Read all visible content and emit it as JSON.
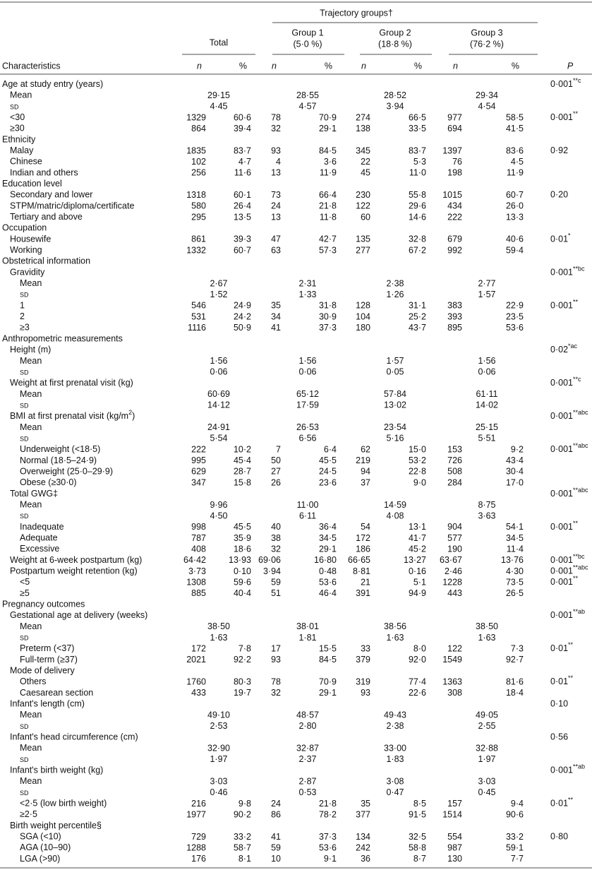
{
  "header": {
    "trajectory": "Trajectory groups†",
    "total": "Total",
    "groups": [
      {
        "name": "Group 1",
        "share": "(5·0 %)"
      },
      {
        "name": "Group 2",
        "share": "(18·8 %)"
      },
      {
        "name": "Group 3",
        "share": "(76·2 %)"
      }
    ],
    "characteristics": "Characteristics",
    "n": "n",
    "pct": "%",
    "p": "P"
  },
  "rows": [
    {
      "label": "Age at study entry (years)",
      "indent": 0,
      "p": "0·001",
      "p_sup": "**c"
    },
    {
      "label": "Mean",
      "indent": 1,
      "cells": [
        "29·15",
        "28·55",
        "28·52",
        "29·34"
      ]
    },
    {
      "label": "sd",
      "indent": 1,
      "cells": [
        "4·45",
        "4·57",
        "3·94",
        "4·54"
      ]
    },
    {
      "label": "<30",
      "indent": 1,
      "cells": [
        "1329",
        "60·6",
        "78",
        "70·9",
        "274",
        "66·5",
        "977",
        "58·5"
      ],
      "p": "0·001",
      "p_sup": "**"
    },
    {
      "label": "≥30",
      "indent": 1,
      "cells": [
        "864",
        "39·4",
        "32",
        "29·1",
        "138",
        "33·5",
        "694",
        "41·5"
      ]
    },
    {
      "label": "Ethnicity",
      "indent": 0
    },
    {
      "label": "Malay",
      "indent": 1,
      "cells": [
        "1835",
        "83·7",
        "93",
        "84·5",
        "345",
        "83·7",
        "1397",
        "83·6"
      ],
      "p": "0·92"
    },
    {
      "label": "Chinese",
      "indent": 1,
      "cells": [
        "102",
        "4·7",
        "4",
        "3·6",
        "22",
        "5·3",
        "76",
        "4·5"
      ]
    },
    {
      "label": "Indian and others",
      "indent": 1,
      "cells": [
        "256",
        "11·6",
        "13",
        "11·9",
        "45",
        "11·0",
        "198",
        "11·9"
      ]
    },
    {
      "label": "Education level",
      "indent": 0
    },
    {
      "label": "Secondary and lower",
      "indent": 1,
      "cells": [
        "1318",
        "60·1",
        "73",
        "66·4",
        "230",
        "55·8",
        "1015",
        "60·7"
      ],
      "p": "0·20"
    },
    {
      "label": "STPM/matric/diploma/certificate",
      "indent": 1,
      "cells": [
        "580",
        "26·4",
        "24",
        "21·8",
        "122",
        "29·6",
        "434",
        "26·0"
      ]
    },
    {
      "label": "Tertiary and above",
      "indent": 1,
      "cells": [
        "295",
        "13·5",
        "13",
        "11·8",
        "60",
        "14·6",
        "222",
        "13·3"
      ]
    },
    {
      "label": "Occupation",
      "indent": 0
    },
    {
      "label": "Housewife",
      "indent": 1,
      "cells": [
        "861",
        "39·3",
        "47",
        "42·7",
        "135",
        "32·8",
        "679",
        "40·6"
      ],
      "p": "0·01",
      "p_sup": "*"
    },
    {
      "label": "Working",
      "indent": 1,
      "cells": [
        "1332",
        "60·7",
        "63",
        "57·3",
        "277",
        "67·2",
        "992",
        "59·4"
      ]
    },
    {
      "label": "Obstetrical information",
      "indent": 0
    },
    {
      "label": "Gravidity",
      "indent": 1,
      "p": "0·001",
      "p_sup": "**bc"
    },
    {
      "label": "Mean",
      "indent": 2,
      "cells": [
        "2·67",
        "2·31",
        "2·38",
        "2·77"
      ]
    },
    {
      "label": "sd",
      "indent": 2,
      "cells": [
        "1·52",
        "1·33",
        "1·26",
        "1·57"
      ]
    },
    {
      "label": "1",
      "indent": 2,
      "cells": [
        "546",
        "24·9",
        "35",
        "31·8",
        "128",
        "31·1",
        "383",
        "22·9"
      ],
      "p": "0·001",
      "p_sup": "**"
    },
    {
      "label": "2",
      "indent": 2,
      "cells": [
        "531",
        "24·2",
        "34",
        "30·9",
        "104",
        "25·2",
        "393",
        "23·5"
      ]
    },
    {
      "label": "≥3",
      "indent": 2,
      "cells": [
        "1116",
        "50·9",
        "41",
        "37·3",
        "180",
        "43·7",
        "895",
        "53·6"
      ]
    },
    {
      "label": "Anthropometric measurements",
      "indent": 0
    },
    {
      "label": "Height (m)",
      "indent": 1,
      "p": "0·02",
      "p_sup": "*ac"
    },
    {
      "label": "Mean",
      "indent": 2,
      "cells": [
        "1·56",
        "1·56",
        "1·57",
        "1·56"
      ]
    },
    {
      "label": "sd",
      "indent": 2,
      "cells": [
        "0·06",
        "0·06",
        "0·05",
        "0·06"
      ]
    },
    {
      "label": "Weight at first prenatal visit (kg)",
      "indent": 1,
      "p": "0·001",
      "p_sup": "**c"
    },
    {
      "label": "Mean",
      "indent": 2,
      "cells": [
        "60·69",
        "65·12",
        "57·84",
        "61·11"
      ]
    },
    {
      "label": "sd",
      "indent": 2,
      "cells": [
        "14·12",
        "17·59",
        "13·02",
        "14·02"
      ]
    },
    {
      "label": "BMI at first prenatal visit (kg/m",
      "label_sup": "2",
      "label_tail": ")",
      "indent": 1,
      "p": "0·001",
      "p_sup": "**abc"
    },
    {
      "label": "Mean",
      "indent": 2,
      "cells": [
        "24·91",
        "26·53",
        "23·54",
        "25·15"
      ]
    },
    {
      "label": "sd",
      "indent": 2,
      "cells": [
        "5·54",
        "6·56",
        "5·16",
        "5·51"
      ]
    },
    {
      "label": "Underweight (<18·5)",
      "indent": 2,
      "cells": [
        "222",
        "10·2",
        "7",
        "6·4",
        "62",
        "15·0",
        "153",
        "9·2"
      ],
      "p": "0·001",
      "p_sup": "**abc"
    },
    {
      "label": "Normal (18·5–24·9)",
      "indent": 2,
      "cells": [
        "995",
        "45·4",
        "50",
        "45·5",
        "219",
        "53·2",
        "726",
        "43·4"
      ]
    },
    {
      "label": "Overweight (25·0–29·9)",
      "indent": 2,
      "cells": [
        "629",
        "28·7",
        "27",
        "24·5",
        "94",
        "22·8",
        "508",
        "30·4"
      ]
    },
    {
      "label": "Obese (≥30·0)",
      "indent": 2,
      "cells": [
        "347",
        "15·8",
        "26",
        "23·6",
        "37",
        "9·0",
        "284",
        "17·0"
      ]
    },
    {
      "label": "Total GWG‡",
      "indent": 1,
      "p": "0·001",
      "p_sup": "**abc"
    },
    {
      "label": "Mean",
      "indent": 2,
      "cells": [
        "9·96",
        "11·00",
        "14·59",
        "8·75"
      ]
    },
    {
      "label": "sd",
      "indent": 2,
      "cells": [
        "4·50",
        "6·11",
        "4·08",
        "3·63"
      ]
    },
    {
      "label": "Inadequate",
      "indent": 2,
      "cells": [
        "998",
        "45·5",
        "40",
        "36·4",
        "54",
        "13·1",
        "904",
        "54·1"
      ],
      "p": "0·001",
      "p_sup": "**"
    },
    {
      "label": "Adequate",
      "indent": 2,
      "cells": [
        "787",
        "35·9",
        "38",
        "34·5",
        "172",
        "41·7",
        "577",
        "34·5"
      ]
    },
    {
      "label": "Excessive",
      "indent": 2,
      "cells": [
        "408",
        "18·6",
        "32",
        "29·1",
        "186",
        "45·2",
        "190",
        "11·4"
      ]
    },
    {
      "label": "Weight at 6-week postpartum (kg)",
      "indent": 1,
      "cells": [
        "64·42",
        "13·93",
        "69·06",
        "16·80",
        "66·65",
        "13·27",
        "63·67",
        "13·76"
      ],
      "p": "0·001",
      "p_sup": "**bc"
    },
    {
      "label": "Postpartum weight retention (kg)",
      "indent": 1,
      "cells": [
        "3·73",
        "0·10",
        "3·94",
        "0·48",
        "8·81",
        "0·16",
        "2·46",
        "4·30"
      ],
      "p": "0·001",
      "p_sup": "**abc"
    },
    {
      "label": "<5",
      "indent": 2,
      "cells": [
        "1308",
        "59·6",
        "59",
        "53·6",
        "21",
        "5·1",
        "1228",
        "73·5"
      ],
      "p": "0·001",
      "p_sup": "**"
    },
    {
      "label": "≥5",
      "indent": 2,
      "cells": [
        "885",
        "40·4",
        "51",
        "46·4",
        "391",
        "94·9",
        "443",
        "26·5"
      ]
    },
    {
      "label": "Pregnancy outcomes",
      "indent": 0
    },
    {
      "label": "Gestational age at delivery (weeks)",
      "indent": 1,
      "p": "0·001",
      "p_sup": "**ab"
    },
    {
      "label": "Mean",
      "indent": 2,
      "cells": [
        "38·50",
        "38·01",
        "38·56",
        "38·50"
      ]
    },
    {
      "label": "sd",
      "indent": 2,
      "cells": [
        "1·63",
        "1·81",
        "1·63",
        "1·63"
      ]
    },
    {
      "label": "Preterm (<37)",
      "indent": 2,
      "cells": [
        "172",
        "7·8",
        "17",
        "15·5",
        "33",
        "8·0",
        "122",
        "7·3"
      ],
      "p": "0·01",
      "p_sup": "**"
    },
    {
      "label": "Full-term (≥37)",
      "indent": 2,
      "cells": [
        "2021",
        "92·2",
        "93",
        "84·5",
        "379",
        "92·0",
        "1549",
        "92·7"
      ]
    },
    {
      "label": "Mode of delivery",
      "indent": 1
    },
    {
      "label": "Others",
      "indent": 2,
      "cells": [
        "1760",
        "80·3",
        "78",
        "70·9",
        "319",
        "77·4",
        "1363",
        "81·6"
      ],
      "p": "0·01",
      "p_sup": "**"
    },
    {
      "label": "Caesarean section",
      "indent": 2,
      "cells": [
        "433",
        "19·7",
        "32",
        "29·1",
        "93",
        "22·6",
        "308",
        "18·4"
      ]
    },
    {
      "label": "Infant's length (cm)",
      "indent": 1,
      "p": "0·10"
    },
    {
      "label": "Mean",
      "indent": 2,
      "cells": [
        "49·10",
        "48·57",
        "49·43",
        "49·05"
      ]
    },
    {
      "label": "sd",
      "indent": 2,
      "cells": [
        "2·53",
        "2·80",
        "2·38",
        "2·55"
      ]
    },
    {
      "label": "Infant's head circumference (cm)",
      "indent": 1,
      "p": "0·56"
    },
    {
      "label": "Mean",
      "indent": 2,
      "cells": [
        "32·90",
        "32·87",
        "33·00",
        "32·88"
      ]
    },
    {
      "label": "sd",
      "indent": 2,
      "cells": [
        "1·97",
        "2·37",
        "1·83",
        "1·97"
      ]
    },
    {
      "label": "Infant's birth weight (kg)",
      "indent": 1,
      "p": "0·001",
      "p_sup": "**ab"
    },
    {
      "label": "Mean",
      "indent": 2,
      "cells": [
        "3·03",
        "2·87",
        "3·08",
        "3·03"
      ]
    },
    {
      "label": "sd",
      "indent": 2,
      "cells": [
        "0·46",
        "0·53",
        "0·47",
        "0·45"
      ]
    },
    {
      "label": "<2·5 (low birth weight)",
      "indent": 2,
      "cells": [
        "216",
        "9·8",
        "24",
        "21·8",
        "35",
        "8·5",
        "157",
        "9·4"
      ],
      "p": "0·01",
      "p_sup": "**"
    },
    {
      "label": "≥2·5",
      "indent": 2,
      "cells": [
        "1977",
        "90·2",
        "86",
        "78·2",
        "377",
        "91·5",
        "1514",
        "90·6"
      ]
    },
    {
      "label": "Birth weight percentile§",
      "indent": 1
    },
    {
      "label": "SGA (<10)",
      "indent": 2,
      "cells": [
        "729",
        "33·2",
        "41",
        "37·3",
        "134",
        "32·5",
        "554",
        "33·2"
      ],
      "p": "0·80"
    },
    {
      "label": "AGA (10–90)",
      "indent": 2,
      "cells": [
        "1288",
        "58·7",
        "59",
        "53·6",
        "242",
        "58·8",
        "987",
        "59·1"
      ]
    },
    {
      "label": "LGA (>90)",
      "indent": 2,
      "cells": [
        "176",
        "8·1",
        "10",
        "9·1",
        "36",
        "8·7",
        "130",
        "7·7"
      ]
    }
  ]
}
